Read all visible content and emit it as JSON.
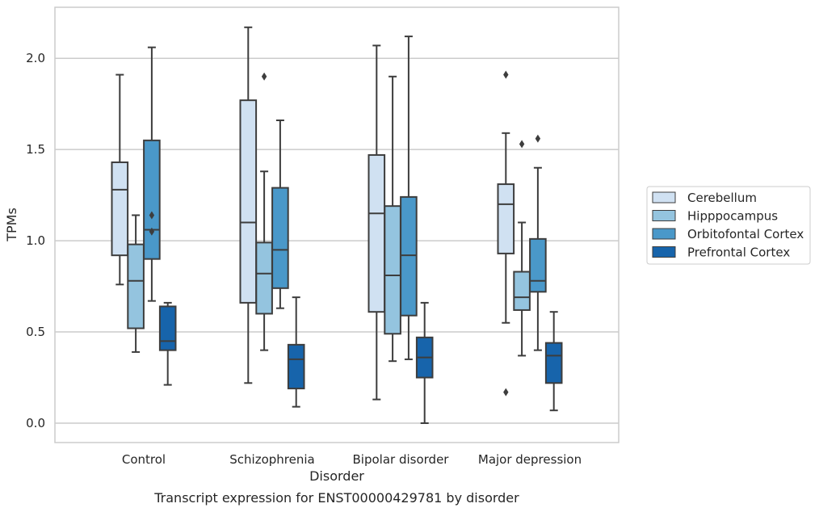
{
  "chart_data": {
    "type": "boxplot",
    "xlabel": "Disorder",
    "ylabel": "TPMs",
    "caption": "Transcript expression for ENST00000429781 by disorder",
    "ylim": [
      -0.1,
      2.29
    ],
    "yticks": [
      "0.0",
      "0.5",
      "1.0",
      "1.5",
      "2.0"
    ],
    "ytick_values": [
      0,
      0.5,
      1.0,
      1.5,
      2.0
    ],
    "grid": "horizontal",
    "legend_position": "right",
    "categories": [
      "Control",
      "Schizophrenia",
      "Bipolar disorder",
      "Major depression"
    ],
    "series": [
      {
        "name": "Cerebellum",
        "color": "#d0e1f2",
        "boxes": [
          {
            "whislo": 0.76,
            "q1": 0.92,
            "med": 1.28,
            "q3": 1.43,
            "whishi": 1.91,
            "fliers": []
          },
          {
            "whislo": 0.22,
            "q1": 0.66,
            "med": 1.1,
            "q3": 1.77,
            "whishi": 2.17,
            "fliers": []
          },
          {
            "whislo": 0.13,
            "q1": 0.61,
            "med": 1.15,
            "q3": 1.47,
            "whishi": 2.07,
            "fliers": []
          },
          {
            "whislo": 0.55,
            "q1": 0.93,
            "med": 1.2,
            "q3": 1.31,
            "whishi": 1.59,
            "fliers": [
              1.91,
              0.17
            ]
          }
        ]
      },
      {
        "name": "Hipppocampus",
        "color": "#94c4df",
        "boxes": [
          {
            "whislo": 0.39,
            "q1": 0.52,
            "med": 0.78,
            "q3": 0.98,
            "whishi": 1.14,
            "fliers": []
          },
          {
            "whislo": 0.4,
            "q1": 0.6,
            "med": 0.82,
            "q3": 0.99,
            "whishi": 1.38,
            "fliers": [
              1.9
            ]
          },
          {
            "whislo": 0.34,
            "q1": 0.49,
            "med": 0.81,
            "q3": 1.19,
            "whishi": 1.9,
            "fliers": []
          },
          {
            "whislo": 0.37,
            "q1": 0.62,
            "med": 0.69,
            "q3": 0.83,
            "whishi": 1.1,
            "fliers": [
              1.53
            ]
          }
        ]
      },
      {
        "name": "Orbitofontal Cortex",
        "color": "#4a98c9",
        "boxes": [
          {
            "whislo": 0.67,
            "q1": 0.9,
            "med": 1.06,
            "q3": 1.55,
            "whishi": 2.06,
            "fliers": [
              1.14,
              1.05
            ]
          },
          {
            "whislo": 0.63,
            "q1": 0.74,
            "med": 0.95,
            "q3": 1.29,
            "whishi": 1.66,
            "fliers": []
          },
          {
            "whislo": 0.35,
            "q1": 0.59,
            "med": 0.92,
            "q3": 1.24,
            "whishi": 2.12,
            "fliers": []
          },
          {
            "whislo": 0.4,
            "q1": 0.72,
            "med": 0.78,
            "q3": 1.01,
            "whishi": 1.4,
            "fliers": [
              1.56
            ]
          }
        ]
      },
      {
        "name": "Prefrontal Cortex",
        "color": "#1764ab",
        "boxes": [
          {
            "whislo": 0.21,
            "q1": 0.4,
            "med": 0.45,
            "q3": 0.64,
            "whishi": 0.66,
            "fliers": []
          },
          {
            "whislo": 0.09,
            "q1": 0.19,
            "med": 0.35,
            "q3": 0.43,
            "whishi": 0.69,
            "fliers": []
          },
          {
            "whislo": 0.0,
            "q1": 0.25,
            "med": 0.36,
            "q3": 0.47,
            "whishi": 0.66,
            "fliers": []
          },
          {
            "whislo": 0.07,
            "q1": 0.22,
            "med": 0.37,
            "q3": 0.44,
            "whishi": 0.61,
            "fliers": []
          }
        ]
      }
    ]
  }
}
